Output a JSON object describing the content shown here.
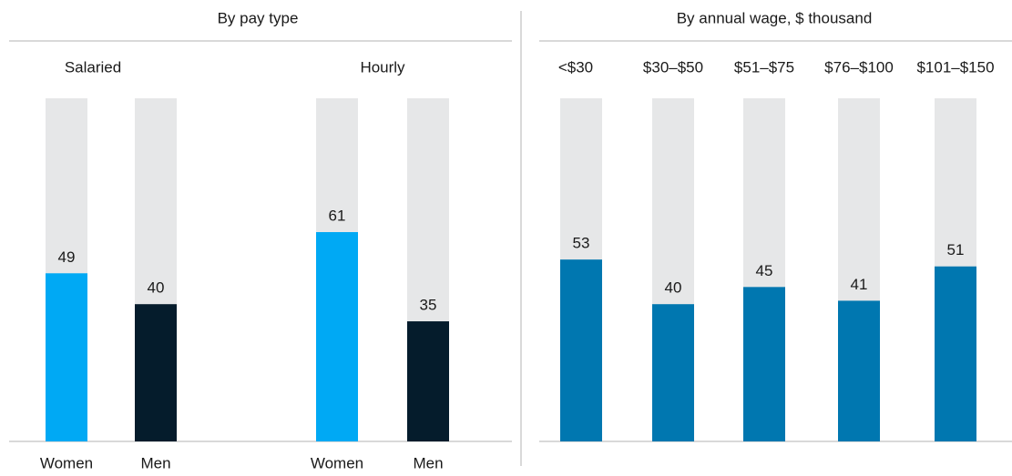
{
  "chart_data": [
    {
      "type": "grouped_bar",
      "title": "By pay type",
      "groups": [
        {
          "name": "Salaried",
          "categories": [
            "Women",
            "Men"
          ],
          "values": [
            49,
            40
          ]
        },
        {
          "name": "Hourly",
          "categories": [
            "Women",
            "Men"
          ],
          "values": [
            61,
            35
          ]
        }
      ],
      "colors": [
        "#00a9f4",
        "#051c2c"
      ],
      "track_color": "#e6e7e8",
      "ylim": [
        0,
        100
      ]
    },
    {
      "type": "bar",
      "title": "By annual wage, $ thousand",
      "categories": [
        "<$30",
        "$30–$50",
        "$51–$75",
        "$76–$100",
        "$101–$150"
      ],
      "values": [
        53,
        40,
        45,
        41,
        51
      ],
      "color": "#0077b0",
      "track_color": "#e6e7e8",
      "ylim": [
        0,
        100
      ]
    }
  ]
}
